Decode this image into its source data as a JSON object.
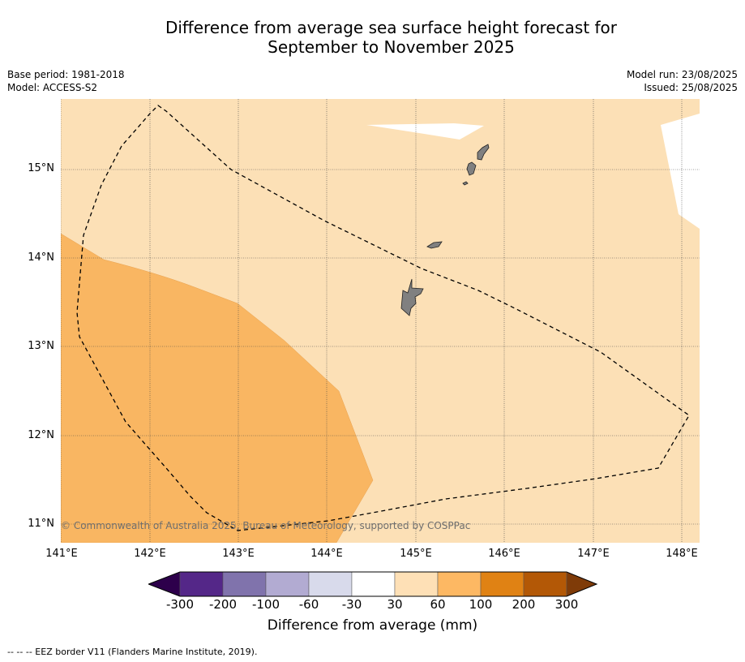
{
  "title_line1": "Difference from average sea surface height forecast for",
  "title_line2": "September to November 2025",
  "meta_left": {
    "base_period": "Base period: 1981-2018",
    "model": "Model: ACCESS-S2"
  },
  "meta_right": {
    "model_run": "Model run: 23/08/2025",
    "issued": "Issued: 25/08/2025"
  },
  "map": {
    "extent": {
      "lon": [
        141.0,
        148.2
      ],
      "lat": [
        10.8,
        15.8
      ]
    },
    "latitude_labels": [
      {
        "value": 15,
        "label": "15°N"
      },
      {
        "value": 14,
        "label": "14°N"
      },
      {
        "value": 13,
        "label": "13°N"
      },
      {
        "value": 12,
        "label": "12°N"
      },
      {
        "value": 11,
        "label": "11°N"
      }
    ],
    "longitude_labels": [
      {
        "value": 141,
        "label": "141°E"
      },
      {
        "value": 142,
        "label": "142°E"
      },
      {
        "value": 143,
        "label": "143°E"
      },
      {
        "value": 144,
        "label": "144°E"
      },
      {
        "value": 145,
        "label": "145°E"
      },
      {
        "value": 146,
        "label": "146°E"
      },
      {
        "value": 147,
        "label": "147°E"
      },
      {
        "value": 148,
        "label": "148°E"
      }
    ],
    "regions": [
      {
        "category": "30 to 60",
        "color": "#fce0b6"
      },
      {
        "category": "60 to 100",
        "color": "#f9b662"
      },
      {
        "category": "-30 to 30",
        "color": "#ffffff"
      }
    ],
    "land_color": "#808080",
    "copyright": "© Commonwealth of Australia 2025, Bureau of Meteorology, supported by COSPPac"
  },
  "colorbar": {
    "labels": [
      "-300",
      "-200",
      "-100",
      "-60",
      "-30",
      "30",
      "60",
      "100",
      "200",
      "300"
    ],
    "colors": [
      "#2d004b",
      "#542788",
      "#8073ac",
      "#b2abd2",
      "#d8daeb",
      "#ffffff",
      "#fee0b6",
      "#fdb863",
      "#e08214",
      "#b35806",
      "#7f3b08"
    ],
    "title": "Difference from average (mm)"
  },
  "footnote": "--  --  -- EEZ border V11 (Flanders Marine Institute, 2019)."
}
